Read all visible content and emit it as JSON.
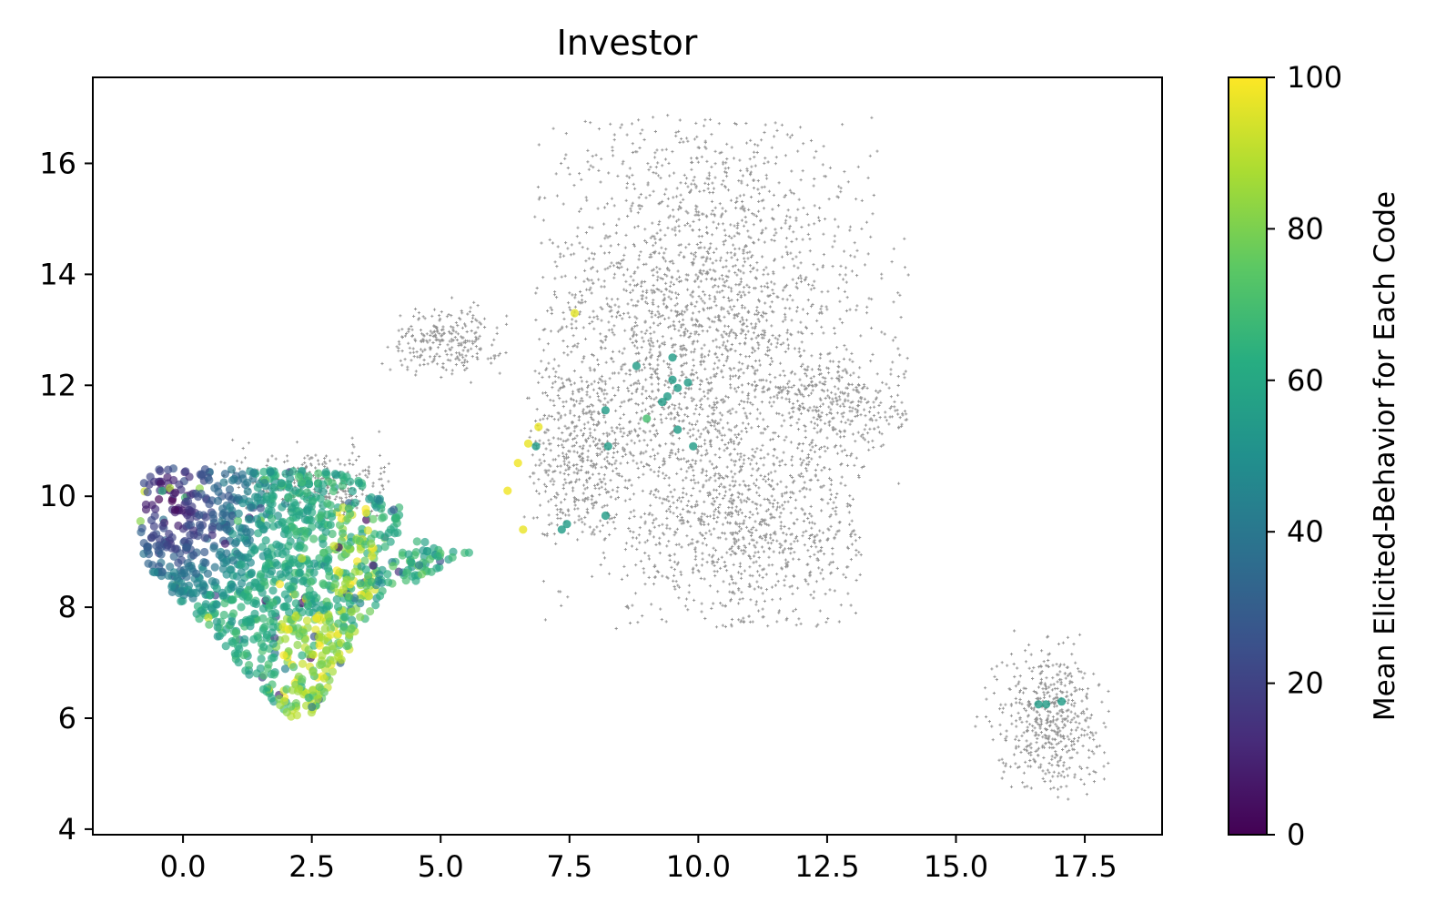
{
  "chart_data": {
    "type": "scatter",
    "title": "Investor",
    "xlabel": "",
    "ylabel": "",
    "xlim": [
      -1.75,
      19.0
    ],
    "ylim": [
      3.9,
      17.55
    ],
    "xticks": [
      "0.0",
      "2.5",
      "5.0",
      "7.5",
      "10.0",
      "12.5",
      "15.0",
      "17.5"
    ],
    "yticks": [
      "4",
      "6",
      "8",
      "10",
      "12",
      "14",
      "16"
    ],
    "grid": false,
    "colorbar": {
      "label": "Mean Elicited-Behavior for Each Code",
      "range": [
        0,
        100
      ],
      "ticks": [
        "0",
        "20",
        "40",
        "60",
        "80",
        "100"
      ],
      "colormap": "viridis",
      "colors": [
        "#440154",
        "#472c7a",
        "#3b518b",
        "#2c718e",
        "#21908d",
        "#27ad81",
        "#5cc863",
        "#aadc32",
        "#fde725"
      ]
    },
    "background_series": {
      "name": "",
      "marker": "+",
      "color": "#808080",
      "clusters": [
        {
          "cx": 10.0,
          "cy": 12.9,
          "sx": 1.7,
          "sy": 2.1,
          "n": 2600,
          "xmin": 6.8,
          "xmax": 14.1,
          "ymin": 7.6,
          "ymax": 16.9
        },
        {
          "cx": 11.0,
          "cy": 9.3,
          "sx": 1.3,
          "sy": 0.9,
          "n": 700,
          "xmin": 8.6,
          "xmax": 13.2,
          "ymin": 7.6,
          "ymax": 11.0
        },
        {
          "cx": 12.8,
          "cy": 11.6,
          "sx": 0.6,
          "sy": 0.4,
          "n": 260,
          "xmin": 11.5,
          "xmax": 14.1,
          "ymin": 10.8,
          "ymax": 12.5
        },
        {
          "cx": 7.7,
          "cy": 10.6,
          "sx": 0.55,
          "sy": 0.8,
          "n": 380,
          "xmin": 6.6,
          "xmax": 8.9,
          "ymin": 9.3,
          "ymax": 12.2
        },
        {
          "cx": 5.1,
          "cy": 12.8,
          "sx": 0.55,
          "sy": 0.3,
          "n": 260,
          "xmin": 3.8,
          "xmax": 6.3,
          "ymin": 12.0,
          "ymax": 13.6
        },
        {
          "cx": 2.6,
          "cy": 10.2,
          "sx": 0.9,
          "sy": 0.35,
          "n": 330,
          "xmin": 0.6,
          "xmax": 4.0,
          "ymin": 9.5,
          "ymax": 11.3
        },
        {
          "cx": 16.8,
          "cy": 6.0,
          "sx": 0.5,
          "sy": 0.65,
          "n": 520,
          "xmin": 15.2,
          "xmax": 18.0,
          "ymin": 4.5,
          "ymax": 7.7
        }
      ]
    },
    "colored_series": {
      "name": "",
      "marker": "o",
      "colored_by": "Mean Elicited-Behavior for Each Code",
      "main_cluster_count": 1250,
      "points": [
        {
          "x": 7.6,
          "y": 13.3,
          "v": 96
        },
        {
          "x": 8.8,
          "y": 12.35,
          "v": 55
        },
        {
          "x": 9.5,
          "y": 12.5,
          "v": 55
        },
        {
          "x": 9.5,
          "y": 12.1,
          "v": 55
        },
        {
          "x": 9.6,
          "y": 11.95,
          "v": 55
        },
        {
          "x": 9.8,
          "y": 12.05,
          "v": 55
        },
        {
          "x": 9.3,
          "y": 11.7,
          "v": 55
        },
        {
          "x": 9.4,
          "y": 11.8,
          "v": 55
        },
        {
          "x": 8.2,
          "y": 11.55,
          "v": 55
        },
        {
          "x": 9.0,
          "y": 11.4,
          "v": 70
        },
        {
          "x": 9.6,
          "y": 11.2,
          "v": 55
        },
        {
          "x": 9.9,
          "y": 10.9,
          "v": 55
        },
        {
          "x": 8.25,
          "y": 10.9,
          "v": 55
        },
        {
          "x": 6.9,
          "y": 11.25,
          "v": 97
        },
        {
          "x": 6.7,
          "y": 10.95,
          "v": 97
        },
        {
          "x": 6.85,
          "y": 10.9,
          "v": 55
        },
        {
          "x": 6.5,
          "y": 10.6,
          "v": 98
        },
        {
          "x": 6.3,
          "y": 10.1,
          "v": 98
        },
        {
          "x": 6.6,
          "y": 9.4,
          "v": 97
        },
        {
          "x": 7.35,
          "y": 9.4,
          "v": 55
        },
        {
          "x": 7.45,
          "y": 9.5,
          "v": 55
        },
        {
          "x": 8.2,
          "y": 9.65,
          "v": 55
        },
        {
          "x": 16.6,
          "y": 6.25,
          "v": 55
        },
        {
          "x": 16.75,
          "y": 6.25,
          "v": 55
        },
        {
          "x": 17.05,
          "y": 6.3,
          "v": 55
        }
      ]
    }
  }
}
